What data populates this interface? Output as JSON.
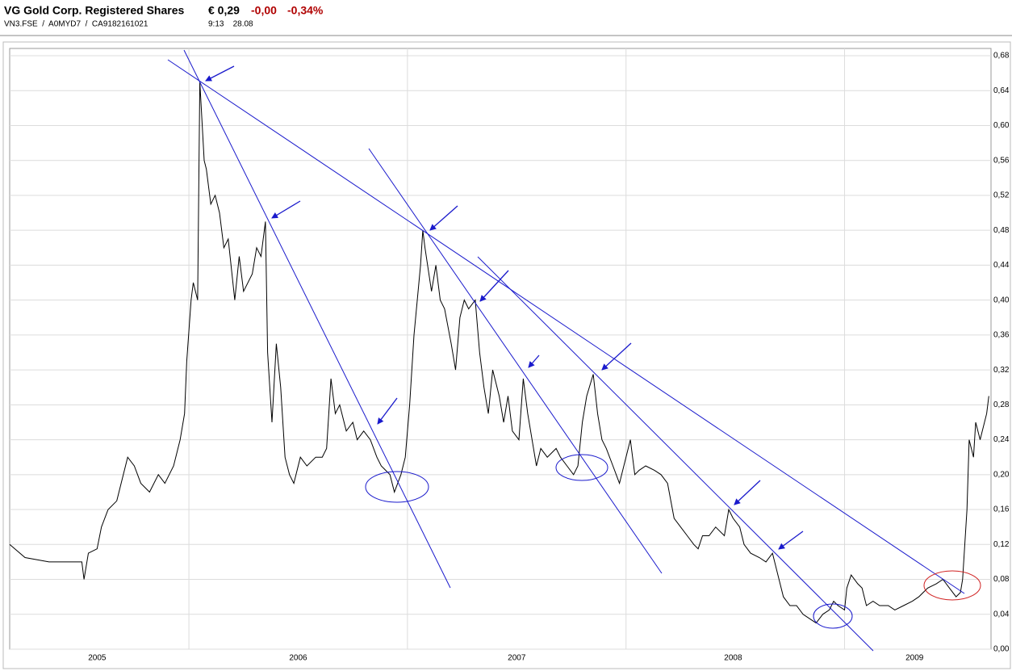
{
  "header": {
    "title": "VG Gold Corp. Registered Shares",
    "price": "€ 0,29",
    "change": "-0,00",
    "change_pct": "-0,34%",
    "ids": "VN3.FSE  /  A0MYD7  /  CA9182161021",
    "time": "9:13    28.08"
  },
  "chart_data": {
    "type": "line",
    "grid": true,
    "xlim": [
      2005.18,
      2009.67
    ],
    "ylim": [
      0,
      0.68
    ],
    "yticks": [
      {
        "value": 0,
        "label": "0,00"
      },
      {
        "value": 0.04,
        "label": "0,04"
      },
      {
        "value": 0.08,
        "label": "0,08"
      },
      {
        "value": 0.12,
        "label": "0,12"
      },
      {
        "value": 0.16,
        "label": "0,16"
      },
      {
        "value": 0.2,
        "label": "0,20"
      },
      {
        "value": 0.24,
        "label": "0,24"
      },
      {
        "value": 0.28,
        "label": "0,28"
      },
      {
        "value": 0.32,
        "label": "0,32"
      },
      {
        "value": 0.36,
        "label": "0,36"
      },
      {
        "value": 0.4,
        "label": "0,40"
      },
      {
        "value": 0.44,
        "label": "0,44"
      },
      {
        "value": 0.48,
        "label": "0,48"
      },
      {
        "value": 0.52,
        "label": "0,52"
      },
      {
        "value": 0.56,
        "label": "0,56"
      },
      {
        "value": 0.6,
        "label": "0,60"
      },
      {
        "value": 0.64,
        "label": "0,64"
      },
      {
        "value": 0.68,
        "label": "0,68"
      }
    ],
    "xticks": [
      {
        "value": 2005.58,
        "label": "2005"
      },
      {
        "value": 2006.5,
        "label": "2006"
      },
      {
        "value": 2007.5,
        "label": "2007"
      },
      {
        "value": 2008.49,
        "label": "2008"
      },
      {
        "value": 2009.32,
        "label": "2009"
      }
    ],
    "xgrid": [
      2006,
      2007,
      2008,
      2009
    ],
    "x": [
      2005.18,
      2005.25,
      2005.36,
      2005.51,
      2005.52,
      2005.54,
      2005.58,
      2005.6,
      2005.63,
      2005.67,
      2005.69,
      2005.72,
      2005.75,
      2005.78,
      2005.82,
      2005.86,
      2005.89,
      2005.93,
      2005.96,
      2005.98,
      2005.99,
      2006.01,
      2006.02,
      2006.04,
      2006.05,
      2006.07,
      2006.08,
      2006.1,
      2006.12,
      2006.14,
      2006.16,
      2006.18,
      2006.21,
      2006.23,
      2006.25,
      2006.29,
      2006.31,
      2006.33,
      2006.35,
      2006.36,
      2006.38,
      2006.4,
      2006.42,
      2006.44,
      2006.46,
      2006.48,
      2006.51,
      2006.54,
      2006.58,
      2006.61,
      2006.63,
      2006.65,
      2006.67,
      2006.69,
      2006.72,
      2006.75,
      2006.77,
      2006.8,
      2006.83,
      2006.86,
      2006.88,
      2006.9,
      2006.92,
      2006.94,
      2006.97,
      2006.99,
      2007.01,
      2007.03,
      2007.06,
      2007.07,
      2007.08,
      2007.11,
      2007.13,
      2007.15,
      2007.17,
      2007.2,
      2007.22,
      2007.24,
      2007.26,
      2007.28,
      2007.31,
      2007.33,
      2007.35,
      2007.37,
      2007.39,
      2007.42,
      2007.44,
      2007.46,
      2007.48,
      2007.51,
      2007.53,
      2007.55,
      2007.57,
      2007.59,
      2007.61,
      2007.64,
      2007.68,
      2007.7,
      2007.73,
      2007.76,
      2007.78,
      2007.8,
      2007.82,
      2007.85,
      2007.87,
      2007.89,
      2007.91,
      2007.94,
      2007.97,
      2008.0,
      2008.02,
      2008.04,
      2008.06,
      2008.09,
      2008.13,
      2008.16,
      2008.19,
      2008.22,
      2008.25,
      2008.28,
      2008.31,
      2008.33,
      2008.35,
      2008.38,
      2008.41,
      2008.45,
      2008.47,
      2008.49,
      2008.52,
      2008.54,
      2008.57,
      2008.61,
      2008.64,
      2008.67,
      2008.69,
      2008.72,
      2008.75,
      2008.78,
      2008.81,
      2008.84,
      2008.87,
      2008.9,
      2008.93,
      2008.95,
      2008.97,
      2009.0,
      2009.01,
      2009.03,
      2009.06,
      2009.08,
      2009.1,
      2009.13,
      2009.16,
      2009.2,
      2009.23,
      2009.27,
      2009.31,
      2009.34,
      2009.38,
      2009.42,
      2009.45,
      2009.48,
      2009.51,
      2009.53,
      2009.54,
      2009.56,
      2009.57,
      2009.59,
      2009.6,
      2009.62,
      2009.63,
      2009.65,
      2009.66
    ],
    "series": [
      {
        "color": "#000000",
        "values": [
          0.12,
          0.105,
          0.1,
          0.1,
          0.08,
          0.11,
          0.115,
          0.14,
          0.16,
          0.17,
          0.19,
          0.22,
          0.21,
          0.19,
          0.18,
          0.2,
          0.19,
          0.21,
          0.24,
          0.27,
          0.33,
          0.4,
          0.42,
          0.4,
          0.65,
          0.56,
          0.55,
          0.51,
          0.52,
          0.5,
          0.46,
          0.47,
          0.4,
          0.45,
          0.41,
          0.43,
          0.46,
          0.45,
          0.49,
          0.34,
          0.26,
          0.35,
          0.3,
          0.22,
          0.2,
          0.19,
          0.22,
          0.21,
          0.22,
          0.22,
          0.23,
          0.31,
          0.27,
          0.28,
          0.25,
          0.26,
          0.24,
          0.25,
          0.24,
          0.22,
          0.21,
          0.205,
          0.2,
          0.18,
          0.2,
          0.22,
          0.28,
          0.36,
          0.44,
          0.48,
          0.46,
          0.41,
          0.44,
          0.4,
          0.39,
          0.35,
          0.32,
          0.38,
          0.4,
          0.39,
          0.4,
          0.34,
          0.3,
          0.27,
          0.32,
          0.29,
          0.26,
          0.29,
          0.25,
          0.24,
          0.31,
          0.27,
          0.24,
          0.21,
          0.23,
          0.22,
          0.23,
          0.22,
          0.21,
          0.2,
          0.21,
          0.26,
          0.29,
          0.315,
          0.27,
          0.24,
          0.23,
          0.21,
          0.19,
          0.22,
          0.24,
          0.2,
          0.205,
          0.21,
          0.205,
          0.2,
          0.19,
          0.15,
          0.14,
          0.13,
          0.12,
          0.115,
          0.13,
          0.13,
          0.14,
          0.13,
          0.16,
          0.15,
          0.14,
          0.12,
          0.11,
          0.105,
          0.1,
          0.11,
          0.09,
          0.06,
          0.05,
          0.05,
          0.04,
          0.035,
          0.03,
          0.04,
          0.045,
          0.055,
          0.05,
          0.045,
          0.07,
          0.085,
          0.075,
          0.07,
          0.05,
          0.055,
          0.05,
          0.05,
          0.045,
          0.05,
          0.055,
          0.06,
          0.07,
          0.075,
          0.08,
          0.07,
          0.06,
          0.065,
          0.08,
          0.16,
          0.24,
          0.22,
          0.26,
          0.24,
          0.25,
          0.27,
          0.29
        ]
      }
    ]
  }
}
